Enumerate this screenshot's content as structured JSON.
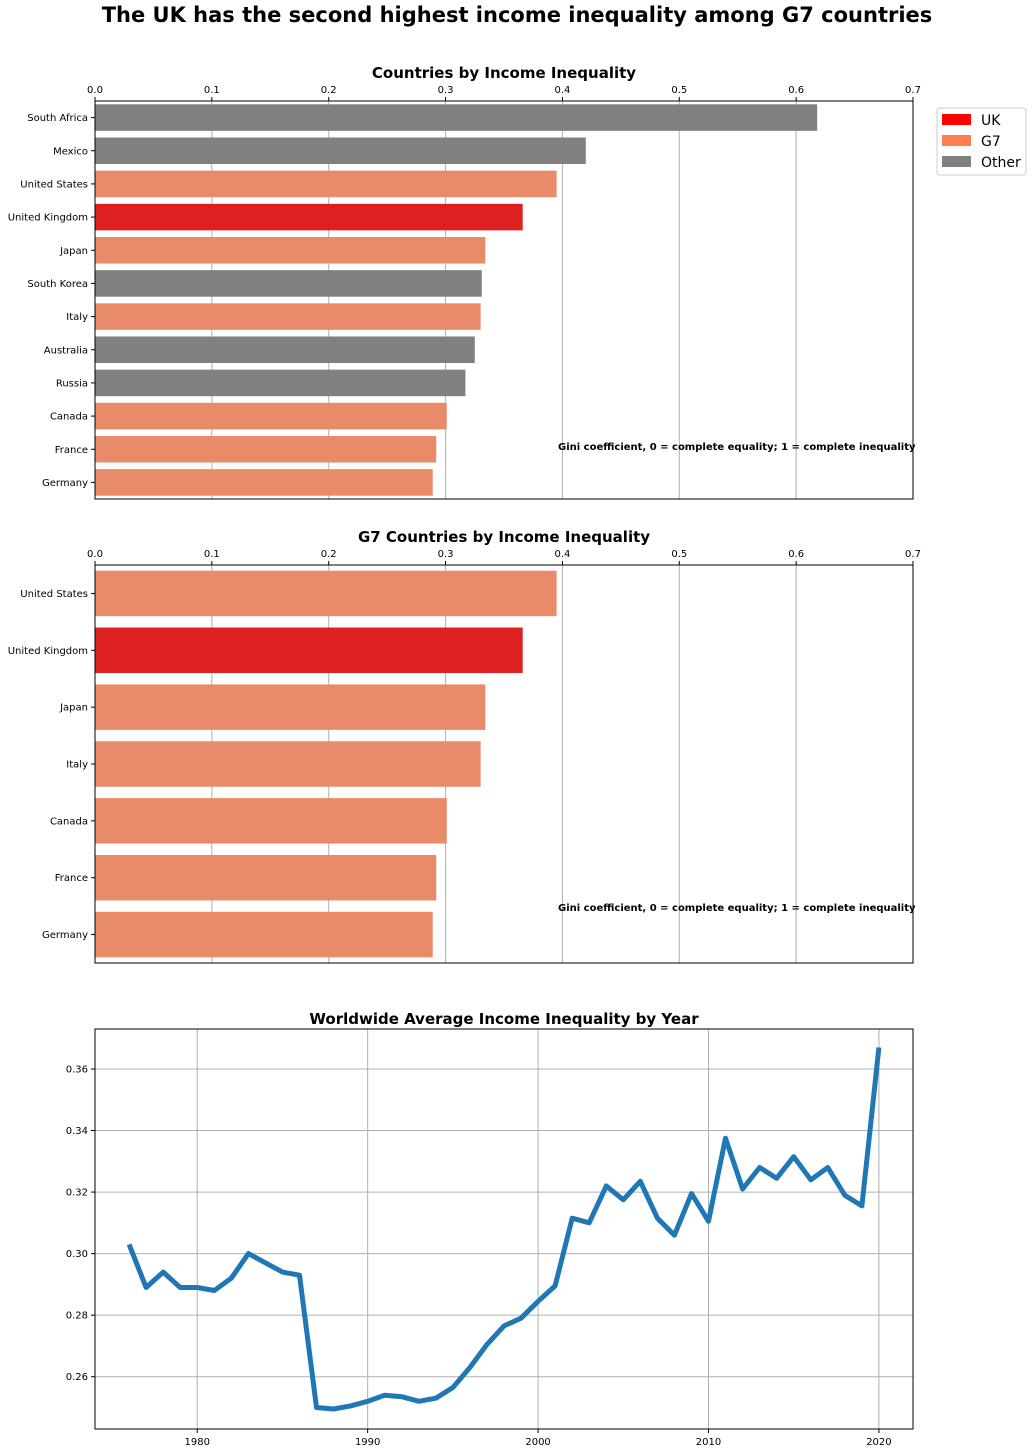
{
  "figure": {
    "title": "The UK has the second highest income inequality among G7 countries"
  },
  "colors": {
    "uk": "#df2020",
    "g7": "#e98a69",
    "other": "#808080",
    "line": "#1f77b4",
    "grid": "#b0b0b0"
  },
  "chart_data": [
    {
      "type": "bar",
      "orientation": "horizontal",
      "title": "Countries by Income Inequality",
      "xlabel": "",
      "ylabel": "",
      "xlim": [
        0,
        0.7
      ],
      "xticks": [
        "0.0",
        "0.1",
        "0.2",
        "0.3",
        "0.4",
        "0.5",
        "0.6",
        "0.7"
      ],
      "grid": "vertical",
      "categories": [
        "South Africa",
        "Mexico",
        "United States",
        "United Kingdom",
        "Japan",
        "South Korea",
        "Italy",
        "Australia",
        "Russia",
        "Canada",
        "France",
        "Germany"
      ],
      "values": [
        0.618,
        0.42,
        0.395,
        0.366,
        0.334,
        0.331,
        0.33,
        0.325,
        0.317,
        0.301,
        0.292,
        0.289
      ],
      "groups": [
        "Other",
        "Other",
        "G7",
        "UK",
        "G7",
        "Other",
        "G7",
        "Other",
        "Other",
        "G7",
        "G7",
        "G7"
      ],
      "legend": {
        "placement": "outside-top-right",
        "entries": [
          {
            "label": "UK",
            "group": "UK"
          },
          {
            "label": "G7",
            "group": "G7"
          },
          {
            "label": "Other",
            "group": "Other"
          }
        ]
      },
      "annotation": "Gini coefficient, 0 = complete equality; 1 = complete inequality"
    },
    {
      "type": "bar",
      "orientation": "horizontal",
      "title": "G7 Countries by Income Inequality",
      "xlabel": "",
      "ylabel": "",
      "xlim": [
        0,
        0.7
      ],
      "xticks": [
        "0.0",
        "0.1",
        "0.2",
        "0.3",
        "0.4",
        "0.5",
        "0.6",
        "0.7"
      ],
      "grid": "vertical",
      "categories": [
        "United States",
        "United Kingdom",
        "Japan",
        "Italy",
        "Canada",
        "France",
        "Germany"
      ],
      "values": [
        0.395,
        0.366,
        0.334,
        0.33,
        0.301,
        0.292,
        0.289
      ],
      "groups": [
        "G7",
        "UK",
        "G7",
        "G7",
        "G7",
        "G7",
        "G7"
      ],
      "annotation": "Gini coefficient, 0 = complete equality; 1 = complete inequality"
    },
    {
      "type": "line",
      "title": "Worldwide Average Income Inequality by Year",
      "xlabel": "",
      "ylabel": "",
      "xlim": [
        1974,
        2022
      ],
      "ylim": [
        0.243,
        0.373
      ],
      "xticks": [
        "1980",
        "1990",
        "2000",
        "2010",
        "2020"
      ],
      "yticks": [
        "0.26",
        "0.28",
        "0.30",
        "0.32",
        "0.34",
        "0.36"
      ],
      "grid": "both",
      "x": [
        1976,
        1977,
        1978,
        1979,
        1980,
        1981,
        1982,
        1983,
        1984,
        1985,
        1986,
        1987,
        1988,
        1989,
        1990,
        1991,
        1992,
        1993,
        1994,
        1995,
        1996,
        1997,
        1998,
        1999,
        2000,
        2001,
        2002,
        2003,
        2004,
        2005,
        2006,
        2007,
        2008,
        2009,
        2010,
        2011,
        2012,
        2013,
        2014,
        2015,
        2016,
        2017,
        2018,
        2019,
        2020
      ],
      "y": [
        0.303,
        0.289,
        0.294,
        0.289,
        0.289,
        0.288,
        0.292,
        0.3,
        0.297,
        0.294,
        0.293,
        0.25,
        0.2495,
        0.2505,
        0.252,
        0.254,
        0.2535,
        0.252,
        0.253,
        0.2565,
        0.263,
        0.2705,
        0.2765,
        0.279,
        0.2845,
        0.2895,
        0.3115,
        0.31,
        0.322,
        0.3175,
        0.3235,
        0.3115,
        0.306,
        0.3195,
        0.3105,
        0.3375,
        0.321,
        0.328,
        0.3245,
        0.3315,
        0.324,
        0.328,
        0.319,
        0.3155,
        0.367
      ]
    }
  ]
}
